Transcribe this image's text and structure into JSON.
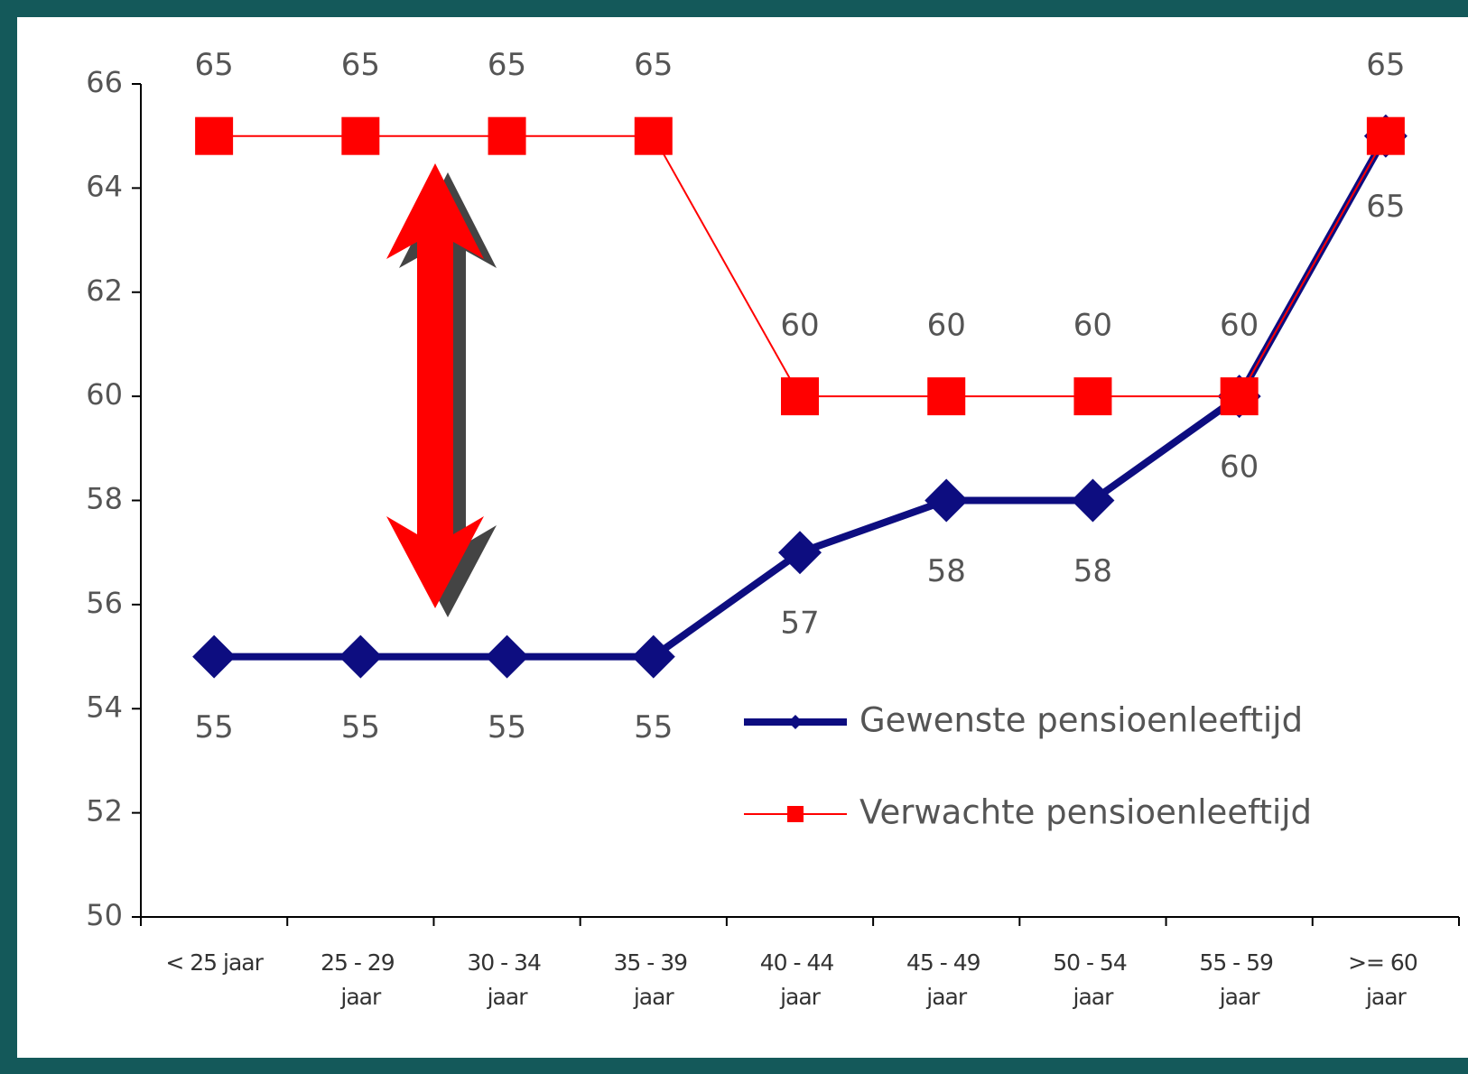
{
  "chart_data": {
    "type": "line",
    "categories": [
      "< 25 jaar",
      "25 - 29 jaar",
      "30 - 34 jaar",
      "35 - 39 jaar",
      "40 - 44 jaar",
      "45 - 49 jaar",
      "50 - 54 jaar",
      "55 - 59 jaar",
      ">= 60 jaar"
    ],
    "series": [
      {
        "name": "Gewenste pensioenleeftijd",
        "color": "#0d0d80",
        "values": [
          55,
          55,
          55,
          55,
          57,
          58,
          58,
          60,
          65
        ]
      },
      {
        "name": "Verwachte pensioenleeftijd",
        "color": "#ff0000",
        "values": [
          65,
          65,
          65,
          65,
          60,
          60,
          60,
          60,
          65
        ]
      }
    ],
    "ylim": [
      50,
      66
    ],
    "yticks": [
      50,
      52,
      54,
      56,
      58,
      60,
      62,
      64,
      66
    ],
    "legend": "lower right"
  }
}
